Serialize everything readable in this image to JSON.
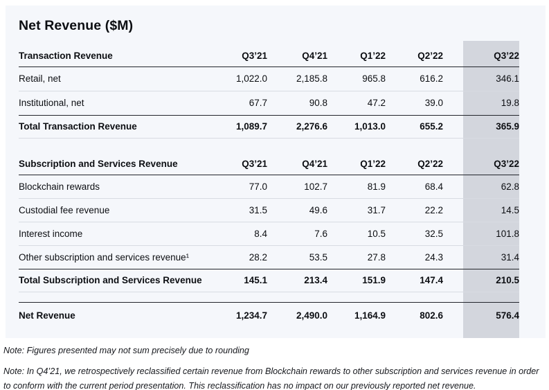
{
  "title": "Net Revenue ($M)",
  "table": {
    "highlighted_column": "Q3’22",
    "sections": [
      {
        "header": {
          "label": "Transaction Revenue",
          "columns": [
            "Q3’21",
            "Q4’21",
            "Q1’22",
            "Q2’22",
            "Q3’22"
          ]
        },
        "rows": [
          {
            "label": "Retail, net",
            "values": [
              "1,022.0",
              "2,185.8",
              "965.8",
              "616.2",
              "346.1"
            ]
          },
          {
            "label": "Institutional, net",
            "values": [
              "67.7",
              "90.8",
              "47.2",
              "39.0",
              "19.8"
            ]
          },
          {
            "label": "Total Transaction Revenue",
            "values": [
              "1,089.7",
              "2,276.6",
              "1,013.0",
              "655.2",
              "365.9"
            ]
          }
        ]
      },
      {
        "header": {
          "label": "Subscription and Services Revenue",
          "columns": [
            "Q3’21",
            "Q4’21",
            "Q1’22",
            "Q2’22",
            "Q3’22"
          ]
        },
        "rows": [
          {
            "label": "Blockchain rewards",
            "values": [
              "77.0",
              "102.7",
              "81.9",
              "68.4",
              "62.8"
            ]
          },
          {
            "label": "Custodial fee revenue",
            "values": [
              "31.5",
              "49.6",
              "31.7",
              "22.2",
              "14.5"
            ]
          },
          {
            "label": "Interest income",
            "values": [
              "8.4",
              "7.6",
              "10.5",
              "32.5",
              "101.8"
            ]
          },
          {
            "label": "Other subscription and services revenue¹",
            "values": [
              "28.2",
              "53.5",
              "27.8",
              "24.3",
              "31.4"
            ]
          },
          {
            "label": "Total Subscription and Services Revenue",
            "values": [
              "145.1",
              "213.4",
              "151.9",
              "147.4",
              "210.5"
            ]
          }
        ]
      }
    ],
    "summary": {
      "label": "Net Revenue",
      "values": [
        "1,234.7",
        "2,490.0",
        "1,164.9",
        "802.6",
        "576.4"
      ]
    }
  },
  "notes": [
    "Note: Figures presented may not sum precisely due to rounding",
    "Note: In Q4’21, we retrospectively reclassified certain revenue from Blockchain rewards to other subscription and services revenue in order to conform with the current period presentation. This reclassification has no impact on our previously reported net revenue."
  ],
  "colors": {
    "card_bg": "#f5f7fb",
    "highlight_bg": "#d3d6dd",
    "text": "#0c0e12",
    "dark_line": "#22252b",
    "light_line": "#d8dbe2",
    "note_text": "#16181d",
    "page_bg": "#ffffff"
  }
}
